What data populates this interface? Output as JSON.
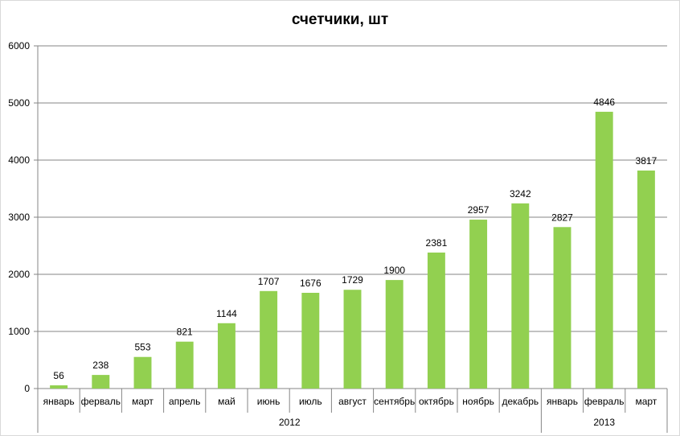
{
  "chart_data": {
    "type": "bar",
    "title": "счетчики, шт",
    "categories": [
      "январь",
      "ферваль",
      "март",
      "апрель",
      "май",
      "июнь",
      "июль",
      "август",
      "сентябрь",
      "октябрь",
      "ноябрь",
      "декабрь",
      "январь",
      "февраль",
      "март"
    ],
    "groups": [
      {
        "label": "2012",
        "count": 12
      },
      {
        "label": "2013",
        "count": 3
      }
    ],
    "values": [
      56,
      238,
      553,
      821,
      1144,
      1707,
      1676,
      1729,
      1900,
      2381,
      2957,
      3242,
      2827,
      4846,
      3817
    ],
    "ylim": [
      0,
      6000
    ],
    "yticks": [
      "0",
      "1000",
      "2000",
      "3000",
      "4000",
      "5000",
      "6000"
    ],
    "grid": true,
    "legend": "none",
    "colors": {
      "bar": "#92d050",
      "grid": "#868686",
      "axis": "#868686"
    }
  }
}
